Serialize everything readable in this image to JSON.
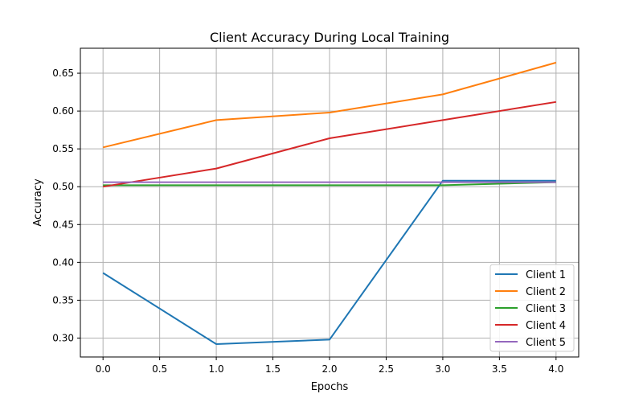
{
  "chart_data": {
    "type": "line",
    "title": "Client Accuracy During Local Training",
    "xlabel": "Epochs",
    "ylabel": "Accuracy",
    "xlim": [
      -0.2,
      4.2
    ],
    "ylim": [
      0.275,
      0.683
    ],
    "xticks": [
      0.0,
      0.5,
      1.0,
      1.5,
      2.0,
      2.5,
      3.0,
      3.5,
      4.0
    ],
    "xtick_labels": [
      "0.0",
      "0.5",
      "1.0",
      "1.5",
      "2.0",
      "2.5",
      "3.0",
      "3.5",
      "4.0"
    ],
    "yticks": [
      0.3,
      0.35,
      0.4,
      0.45,
      0.5,
      0.55,
      0.6,
      0.65
    ],
    "ytick_labels": [
      "0.30",
      "0.35",
      "0.40",
      "0.45",
      "0.50",
      "0.55",
      "0.60",
      "0.65"
    ],
    "grid": true,
    "legend_position": "lower-right",
    "x": [
      0,
      1,
      2,
      3,
      4
    ],
    "series": [
      {
        "name": "Client 1",
        "color": "#1f77b4",
        "values": [
          0.386,
          0.292,
          0.298,
          0.508,
          0.508
        ]
      },
      {
        "name": "Client 2",
        "color": "#ff7f0e",
        "values": [
          0.552,
          0.588,
          0.598,
          0.622,
          0.664
        ]
      },
      {
        "name": "Client 3",
        "color": "#2ca02c",
        "values": [
          0.502,
          0.502,
          0.502,
          0.502,
          0.506
        ]
      },
      {
        "name": "Client 4",
        "color": "#d62728",
        "values": [
          0.5,
          0.524,
          0.564,
          0.588,
          0.612
        ]
      },
      {
        "name": "Client 5",
        "color": "#9467bd",
        "values": [
          0.506,
          0.506,
          0.506,
          0.506,
          0.506
        ]
      }
    ]
  }
}
